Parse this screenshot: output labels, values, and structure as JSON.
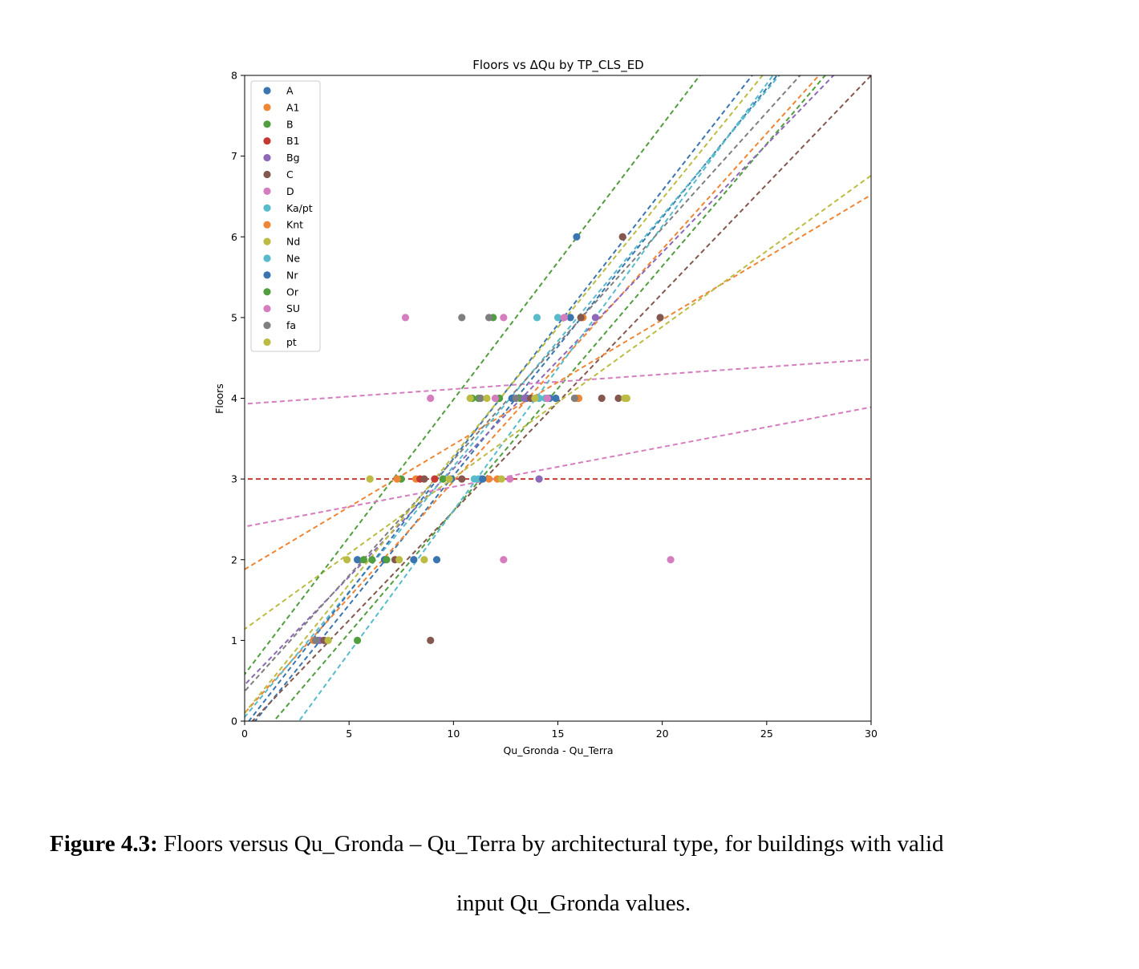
{
  "chart_data": {
    "type": "scatter",
    "title": "Floors vs ΔQu by TP_CLS_ED",
    "xlabel": "Qu_Gronda - Qu_Terra",
    "ylabel": "Floors",
    "xlim": [
      0,
      30
    ],
    "ylim": [
      0,
      8
    ],
    "xticks": [
      0,
      5,
      10,
      15,
      20,
      25,
      30
    ],
    "yticks": [
      0,
      1,
      2,
      3,
      4,
      5,
      6,
      7,
      8
    ],
    "grid": false,
    "legend_position": "top-left",
    "series": [
      {
        "name": "A",
        "color": "#3b75af",
        "points": [
          [
            3.5,
            1
          ],
          [
            5.4,
            2
          ],
          [
            6.7,
            2
          ],
          [
            9.9,
            3
          ],
          [
            12.8,
            4
          ],
          [
            13.5,
            4
          ],
          [
            14.9,
            4
          ],
          [
            15.9,
            6
          ],
          [
            15.6,
            5
          ]
        ],
        "fit": [
          [
            0.5,
            0
          ],
          [
            25.5,
            8
          ]
        ]
      },
      {
        "name": "A1",
        "color": "#ef8636",
        "points": [
          [
            3.3,
            1
          ],
          [
            8.2,
            3
          ],
          [
            9.5,
            3
          ],
          [
            11.7,
            3
          ],
          [
            14.5,
            4
          ],
          [
            16.0,
            4
          ],
          [
            16.2,
            5
          ]
        ],
        "fit": [
          [
            0,
            0.1
          ],
          [
            27.5,
            8
          ]
        ]
      },
      {
        "name": "B",
        "color": "#519e3e",
        "points": [
          [
            5.4,
            1
          ],
          [
            6.1,
            2
          ],
          [
            7.5,
            3
          ],
          [
            10.9,
            4
          ],
          [
            13.2,
            4
          ],
          [
            11.9,
            5
          ]
        ],
        "fit": [
          [
            1.4,
            0
          ],
          [
            27.8,
            8
          ]
        ]
      },
      {
        "name": "B1",
        "color": "#c53932",
        "points": [
          [
            8.4,
            3
          ],
          [
            9.1,
            3
          ]
        ],
        "fit": [
          [
            0,
            3
          ],
          [
            30,
            3
          ]
        ]
      },
      {
        "name": "Bg",
        "color": "#8d69b8",
        "points": [
          [
            3.6,
            1
          ],
          [
            11.3,
            3
          ],
          [
            13.4,
            4
          ],
          [
            16.8,
            5
          ],
          [
            14.1,
            3
          ]
        ],
        "fit": [
          [
            0,
            0.45
          ],
          [
            28.2,
            8
          ]
        ]
      },
      {
        "name": "C",
        "color": "#84584e",
        "points": [
          [
            3.8,
            1
          ],
          [
            7.2,
            2
          ],
          [
            8.6,
            3
          ],
          [
            10.4,
            3
          ],
          [
            13.7,
            4
          ],
          [
            16.1,
            5
          ],
          [
            17.1,
            4
          ],
          [
            17.9,
            4
          ],
          [
            18.1,
            6
          ],
          [
            19.9,
            5
          ],
          [
            8.9,
            1
          ]
        ],
        "fit": [
          [
            0,
            -0.1
          ],
          [
            30,
            8
          ]
        ]
      },
      {
        "name": "D",
        "color": "#d57dbe",
        "points": [
          [
            7.7,
            5
          ],
          [
            8.9,
            4
          ],
          [
            12.4,
            5
          ],
          [
            12.4,
            2
          ],
          [
            20.4,
            2
          ]
        ],
        "fit": [
          [
            0,
            3.93
          ],
          [
            30,
            4.48
          ]
        ]
      },
      {
        "name": "Ka/pt",
        "color": "#58bbcc",
        "points": [
          [
            11.0,
            3
          ],
          [
            14.1,
            4
          ],
          [
            14.0,
            5
          ]
        ],
        "fit": [
          [
            2.6,
            0
          ],
          [
            25.3,
            8
          ]
        ]
      },
      {
        "name": "Knt",
        "color": "#ef8636",
        "points": [
          [
            7.3,
            3
          ],
          [
            12.1,
            3
          ],
          [
            15.9,
            4
          ]
        ],
        "fit": [
          [
            0,
            1.88
          ],
          [
            30,
            6.52
          ]
        ]
      },
      {
        "name": "Nd",
        "color": "#bcbc45",
        "points": [
          [
            4.9,
            2
          ],
          [
            6.0,
            3
          ],
          [
            8.6,
            2
          ],
          [
            10.8,
            4
          ],
          [
            12.3,
            3
          ],
          [
            18.3,
            4
          ]
        ],
        "fit": [
          [
            0,
            1.14
          ],
          [
            30,
            6.76
          ]
        ]
      },
      {
        "name": "Ne",
        "color": "#58bbcc",
        "points": [
          [
            11.2,
            3
          ],
          [
            14.4,
            4
          ],
          [
            15.0,
            5
          ]
        ],
        "fit": [
          [
            0,
            0.05
          ],
          [
            25.6,
            8
          ]
        ]
      },
      {
        "name": "Nr",
        "color": "#3b75af",
        "points": [
          [
            8.1,
            2
          ],
          [
            9.2,
            2
          ],
          [
            11.4,
            3
          ],
          [
            14.6,
            4
          ]
        ],
        "fit": [
          [
            0.2,
            0
          ],
          [
            24.3,
            8
          ]
        ]
      },
      {
        "name": "Or",
        "color": "#519e3e",
        "points": [
          [
            5.7,
            2
          ],
          [
            6.8,
            2
          ],
          [
            9.5,
            3
          ],
          [
            11.2,
            4
          ],
          [
            12.2,
            4
          ]
        ],
        "fit": [
          [
            0,
            0.58
          ],
          [
            21.8,
            8
          ]
        ]
      },
      {
        "name": "SU",
        "color": "#d57dbe",
        "points": [
          [
            12.0,
            4
          ],
          [
            12.7,
            3
          ],
          [
            14.5,
            4
          ],
          [
            15.3,
            5
          ]
        ],
        "fit": [
          [
            0,
            2.41
          ],
          [
            30,
            3.89
          ]
        ]
      },
      {
        "name": "fa",
        "color": "#7f7f7f",
        "points": [
          [
            3.4,
            1
          ],
          [
            10.4,
            5
          ],
          [
            11.7,
            5
          ],
          [
            11.3,
            4
          ],
          [
            13.0,
            4
          ],
          [
            15.8,
            4
          ]
        ],
        "fit": [
          [
            0,
            0.37
          ],
          [
            26.6,
            8
          ]
        ]
      },
      {
        "name": "pt",
        "color": "#bcbc45",
        "points": [
          [
            4.0,
            1
          ],
          [
            7.4,
            2
          ],
          [
            9.8,
            3
          ],
          [
            11.6,
            4
          ],
          [
            13.9,
            4
          ],
          [
            18.2,
            4
          ]
        ],
        "fit": [
          [
            0,
            0.1
          ],
          [
            24.8,
            8
          ]
        ]
      }
    ]
  },
  "caption": {
    "label": "Figure 4.3:",
    "text1": " Floors versus Qu_Gronda – Qu_Terra by architectural type, for buildings with valid",
    "text2": "input Qu_Gronda values."
  }
}
